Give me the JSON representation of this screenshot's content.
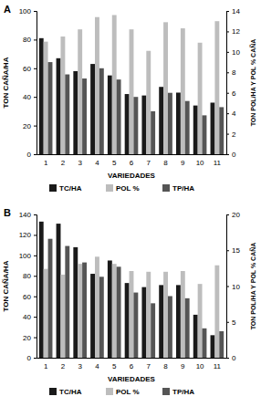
{
  "chart_data": [
    {
      "type": "bar",
      "title": "A",
      "x_label": "VARIEDADES",
      "y_label": "TON CAÑA/HA",
      "y2_label": "TON POL/HA Y POL % CAÑA",
      "categories": [
        "1",
        "2",
        "3",
        "4",
        "5",
        "6",
        "7",
        "8",
        "9",
        "10",
        "11"
      ],
      "series": [
        {
          "name": "TC/HA",
          "color": "#1a1a1a",
          "values": [
            81,
            67,
            58,
            63,
            55,
            42,
            41,
            47,
            43,
            34,
            36
          ]
        },
        {
          "name": "POL %",
          "color": "#bdbdbd",
          "axis": "y2",
          "values": [
            11.0,
            11.5,
            12.2,
            13.4,
            13.6,
            12.2,
            10.1,
            12.9,
            12.3,
            10.9,
            13.0
          ]
        },
        {
          "name": "TP/HA",
          "color": "#555555",
          "axis": "y2",
          "values": [
            9.0,
            7.8,
            7.4,
            8.4,
            7.3,
            5.6,
            4.2,
            6.0,
            5.2,
            3.8,
            4.6
          ]
        }
      ],
      "ylim": [
        0,
        100
      ],
      "yticks": [
        0,
        20,
        40,
        60,
        80,
        100
      ],
      "y2lim": [
        0,
        14
      ],
      "y2ticks": [
        0,
        2,
        4,
        6,
        8,
        10,
        12,
        14
      ],
      "legend": "bottom"
    },
    {
      "type": "bar",
      "title": "B",
      "x_label": "VARIEDADES",
      "y_label": "TON CAÑA/HA",
      "y2_label": "TON POL/HA Y POL % CAÑA",
      "categories": [
        "1",
        "2",
        "3",
        "4",
        "5",
        "6",
        "7",
        "8",
        "9",
        "10",
        "11"
      ],
      "series": [
        {
          "name": "TC/HA",
          "color": "#1a1a1a",
          "values": [
            133,
            131,
            108,
            82,
            95,
            73,
            69,
            71,
            71,
            42,
            22
          ]
        },
        {
          "name": "POL %",
          "color": "#bdbdbd",
          "axis": "y2",
          "values": [
            12.4,
            11.6,
            13.1,
            14.1,
            13.1,
            12.1,
            12.0,
            12.0,
            12.1,
            10.3,
            12.9
          ]
        },
        {
          "name": "TP/HA",
          "color": "#555555",
          "axis": "y2",
          "values": [
            16.6,
            15.6,
            13.3,
            11.3,
            12.7,
            9.1,
            7.6,
            8.6,
            8.3,
            4.1,
            3.7
          ]
        }
      ],
      "ylim": [
        0,
        140
      ],
      "yticks": [
        0,
        20,
        40,
        60,
        80,
        100,
        120,
        140
      ],
      "y2lim": [
        0,
        20
      ],
      "y2ticks": [
        0,
        5,
        10,
        15,
        20
      ],
      "legend": "bottom"
    }
  ]
}
